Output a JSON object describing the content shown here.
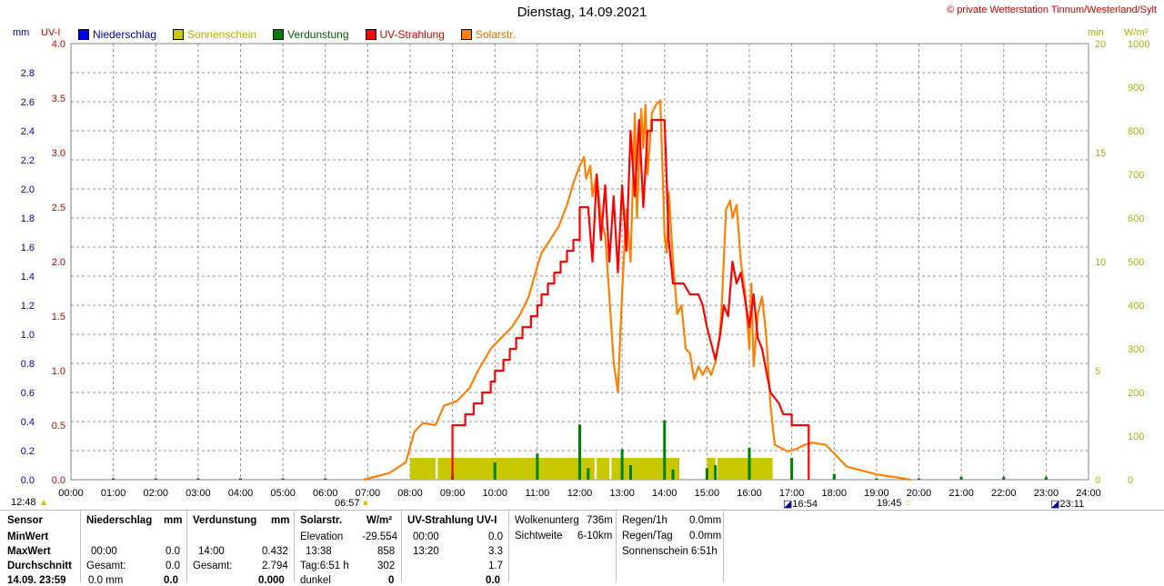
{
  "header": {
    "title": "Dienstag, 14.09.2021",
    "copyright": "© private Wetterstation Tinnum/Westerland/Sylt"
  },
  "units": {
    "mm": "mm",
    "uvi": "UV-I",
    "min": "min",
    "wm2": "W/m²"
  },
  "legend": [
    {
      "label": "Niederschlag",
      "color": "#0000ff",
      "text_color": "#0000aa"
    },
    {
      "label": "Sonnenschein",
      "color": "#c8c800",
      "text_color": "#b0b000"
    },
    {
      "label": "Verdunstung",
      "color": "#008000",
      "text_color": "#006000"
    },
    {
      "label": "UV-Strahlung",
      "color": "#ff0000",
      "text_color": "#cc0000"
    },
    {
      "label": "Solarstr.",
      "color": "#ff8000",
      "text_color": "#e07000"
    }
  ],
  "chart_data": {
    "type": "line",
    "x_unit": "hours",
    "xlim": [
      0,
      24
    ],
    "x_ticks": [
      "00:00",
      "01:00",
      "02:00",
      "03:00",
      "04:00",
      "05:00",
      "06:00",
      "07:00",
      "08:00",
      "09:00",
      "10:00",
      "11:00",
      "12:00",
      "13:00",
      "14:00",
      "15:00",
      "16:00",
      "17:00",
      "18:00",
      "19:00",
      "20:00",
      "21:00",
      "22:00",
      "23:00",
      "24:00"
    ],
    "axes": {
      "mm": {
        "ticks": [
          "0.0",
          "0.2",
          "0.4",
          "0.6",
          "0.8",
          "1.0",
          "1.2",
          "1.4",
          "1.6",
          "1.8",
          "2.0",
          "2.2",
          "2.4",
          "2.6",
          "2.8"
        ],
        "ylim": [
          0,
          3.0
        ]
      },
      "uvi": {
        "ticks": [
          "0.0",
          "0.5",
          "1.0",
          "1.5",
          "2.0",
          "2.5",
          "3.0",
          "3.5",
          "4.0"
        ],
        "ylim": [
          0,
          4.0
        ]
      },
      "min": {
        "ticks": [
          "0",
          "5",
          "10",
          "15",
          "20"
        ],
        "ylim": [
          0,
          20
        ]
      },
      "wm2": {
        "ticks": [
          "0",
          "100",
          "200",
          "300",
          "400",
          "500",
          "600",
          "700",
          "800",
          "900",
          "1000"
        ],
        "ylim": [
          0,
          1000
        ]
      }
    },
    "grid": true,
    "series": [
      {
        "name": "Solarstr.",
        "axis": "wm2",
        "color": "#ff8000",
        "points": [
          [
            6.9,
            0
          ],
          [
            7.5,
            15
          ],
          [
            7.9,
            40
          ],
          [
            8.1,
            110
          ],
          [
            8.3,
            130
          ],
          [
            8.6,
            125
          ],
          [
            8.8,
            170
          ],
          [
            9.1,
            180
          ],
          [
            9.4,
            210
          ],
          [
            9.6,
            250
          ],
          [
            9.9,
            300
          ],
          [
            10.1,
            320
          ],
          [
            10.4,
            350
          ],
          [
            10.6,
            380
          ],
          [
            10.8,
            420
          ],
          [
            11.0,
            490
          ],
          [
            11.1,
            520
          ],
          [
            11.3,
            550
          ],
          [
            11.5,
            580
          ],
          [
            11.7,
            630
          ],
          [
            11.85,
            680
          ],
          [
            12.0,
            720
          ],
          [
            12.1,
            740
          ],
          [
            12.15,
            690
          ],
          [
            12.25,
            720
          ],
          [
            12.3,
            650
          ],
          [
            12.4,
            700
          ],
          [
            12.5,
            600
          ],
          [
            12.6,
            560
          ],
          [
            12.7,
            420
          ],
          [
            12.8,
            270
          ],
          [
            12.9,
            200
          ],
          [
            13.0,
            430
          ],
          [
            13.1,
            620
          ],
          [
            13.2,
            500
          ],
          [
            13.3,
            840
          ],
          [
            13.35,
            600
          ],
          [
            13.45,
            850
          ],
          [
            13.5,
            760
          ],
          [
            13.55,
            860
          ],
          [
            13.6,
            700
          ],
          [
            13.7,
            840
          ],
          [
            13.8,
            860
          ],
          [
            13.9,
            870
          ],
          [
            14.0,
            560
          ],
          [
            14.05,
            520
          ],
          [
            14.1,
            660
          ],
          [
            14.2,
            500
          ],
          [
            14.3,
            380
          ],
          [
            14.4,
            400
          ],
          [
            14.5,
            300
          ],
          [
            14.6,
            290
          ],
          [
            14.7,
            230
          ],
          [
            14.8,
            260
          ],
          [
            14.9,
            240
          ],
          [
            15.0,
            260
          ],
          [
            15.1,
            240
          ],
          [
            15.2,
            270
          ],
          [
            15.3,
            330
          ],
          [
            15.35,
            400
          ],
          [
            15.45,
            620
          ],
          [
            15.55,
            640
          ],
          [
            15.6,
            600
          ],
          [
            15.7,
            630
          ],
          [
            15.8,
            500
          ],
          [
            15.9,
            430
          ],
          [
            16.0,
            300
          ],
          [
            16.05,
            450
          ],
          [
            16.1,
            260
          ],
          [
            16.2,
            380
          ],
          [
            16.3,
            420
          ],
          [
            16.4,
            330
          ],
          [
            16.5,
            170
          ],
          [
            16.6,
            80
          ],
          [
            16.8,
            70
          ],
          [
            16.9,
            65
          ],
          [
            17.1,
            70
          ],
          [
            17.3,
            80
          ],
          [
            17.5,
            85
          ],
          [
            17.8,
            80
          ],
          [
            18.0,
            60
          ],
          [
            18.3,
            30
          ],
          [
            18.7,
            20
          ],
          [
            19.0,
            12
          ],
          [
            19.5,
            5
          ],
          [
            19.8,
            0
          ]
        ]
      },
      {
        "name": "UV-Strahlung",
        "axis": "uvi",
        "color": "#ff0000",
        "points": [
          [
            9.0,
            0
          ],
          [
            9.0,
            0.5
          ],
          [
            9.3,
            0.5
          ],
          [
            9.3,
            0.6
          ],
          [
            9.5,
            0.6
          ],
          [
            9.5,
            0.7
          ],
          [
            9.7,
            0.7
          ],
          [
            9.7,
            0.8
          ],
          [
            9.9,
            0.8
          ],
          [
            9.9,
            0.9
          ],
          [
            10.0,
            0.9
          ],
          [
            10.0,
            1.0
          ],
          [
            10.2,
            1.0
          ],
          [
            10.2,
            1.1
          ],
          [
            10.35,
            1.1
          ],
          [
            10.35,
            1.2
          ],
          [
            10.5,
            1.2
          ],
          [
            10.5,
            1.3
          ],
          [
            10.65,
            1.3
          ],
          [
            10.65,
            1.4
          ],
          [
            10.85,
            1.4
          ],
          [
            10.85,
            1.5
          ],
          [
            11.0,
            1.5
          ],
          [
            11.0,
            1.6
          ],
          [
            11.1,
            1.6
          ],
          [
            11.1,
            1.7
          ],
          [
            11.25,
            1.7
          ],
          [
            11.25,
            1.8
          ],
          [
            11.4,
            1.8
          ],
          [
            11.4,
            1.9
          ],
          [
            11.55,
            1.9
          ],
          [
            11.55,
            2.0
          ],
          [
            11.7,
            2.0
          ],
          [
            11.7,
            2.1
          ],
          [
            11.85,
            2.1
          ],
          [
            11.85,
            2.2
          ],
          [
            12.0,
            2.2
          ],
          [
            12.0,
            2.5
          ],
          [
            12.2,
            2.5
          ],
          [
            12.3,
            2.0
          ],
          [
            12.4,
            2.8
          ],
          [
            12.5,
            2.2
          ],
          [
            12.6,
            2.7
          ],
          [
            12.7,
            2.0
          ],
          [
            12.8,
            2.6
          ],
          [
            12.9,
            1.9
          ],
          [
            13.0,
            2.7
          ],
          [
            13.1,
            2.1
          ],
          [
            13.2,
            3.2
          ],
          [
            13.3,
            2.6
          ],
          [
            13.4,
            3.3
          ],
          [
            13.5,
            2.5
          ],
          [
            13.6,
            3.2
          ],
          [
            13.7,
            3.2
          ],
          [
            13.7,
            3.3
          ],
          [
            14.0,
            3.3
          ],
          [
            14.1,
            2.2
          ],
          [
            14.2,
            1.8
          ],
          [
            14.3,
            1.8
          ],
          [
            14.3,
            1.8
          ],
          [
            14.45,
            1.8
          ],
          [
            14.6,
            1.7
          ],
          [
            14.8,
            1.7
          ],
          [
            14.9,
            1.6
          ],
          [
            15.0,
            1.4
          ],
          [
            15.2,
            1.1
          ],
          [
            15.3,
            1.3
          ],
          [
            15.4,
            1.6
          ],
          [
            15.5,
            1.5
          ],
          [
            15.6,
            2.0
          ],
          [
            15.7,
            1.8
          ],
          [
            15.8,
            1.9
          ],
          [
            16.0,
            1.4
          ],
          [
            16.1,
            1.7
          ],
          [
            16.2,
            1.3
          ],
          [
            16.3,
            1.2
          ],
          [
            16.4,
            1.0
          ],
          [
            16.5,
            0.8
          ],
          [
            16.7,
            0.7
          ],
          [
            16.8,
            0.6
          ],
          [
            17.0,
            0.6
          ],
          [
            17.0,
            0.5
          ],
          [
            17.4,
            0.5
          ],
          [
            17.4,
            0.0
          ]
        ]
      }
    ],
    "bars": [
      {
        "name": "Sonnenschein",
        "axis": "min",
        "color": "#c8c800",
        "intervals": [
          [
            8.0,
            8.6
          ],
          [
            8.65,
            12.35
          ],
          [
            12.4,
            12.7
          ],
          [
            12.75,
            14.35
          ],
          [
            15.0,
            15.2
          ],
          [
            15.25,
            16.55
          ]
        ],
        "value": 1.0
      },
      {
        "name": "Verdunstung",
        "axis": "mm",
        "color": "#008000",
        "ticks": [
          [
            1.0,
            0.01
          ],
          [
            2.0,
            0.01
          ],
          [
            3.0,
            0.01
          ],
          [
            4.0,
            0.01
          ],
          [
            5.0,
            0.01
          ],
          [
            6.0,
            0.01
          ],
          [
            7.0,
            0.01
          ],
          [
            9.0,
            0.03
          ],
          [
            10.0,
            0.12
          ],
          [
            11.0,
            0.18
          ],
          [
            12.0,
            0.38
          ],
          [
            12.2,
            0.08
          ],
          [
            13.0,
            0.21
          ],
          [
            13.2,
            0.1
          ],
          [
            14.0,
            0.41
          ],
          [
            14.2,
            0.07
          ],
          [
            15.0,
            0.08
          ],
          [
            15.2,
            0.1
          ],
          [
            16.0,
            0.22
          ],
          [
            17.0,
            0.15
          ],
          [
            18.0,
            0.04
          ],
          [
            19.0,
            0.01
          ],
          [
            20.0,
            0.01
          ],
          [
            21.0,
            0.02
          ],
          [
            22.0,
            0.02
          ],
          [
            23.0,
            0.02
          ]
        ]
      }
    ]
  },
  "markers": {
    "current": "12:48",
    "sunrise": "06:57",
    "sunset": "19:45",
    "moonrise": "16:54",
    "moonset": "23:11"
  },
  "table": {
    "headers": {
      "sensor": "Sensor",
      "niederschlag": "Niederschlag",
      "niederschlag_unit": "mm",
      "verdunstung": "Verdunstung",
      "verdunstung_unit": "mm",
      "solar": "Solarstr.",
      "solar_unit": "W/m²",
      "uv": "UV-Strahlung UV-I"
    },
    "rows": {
      "minwert": "MinWert",
      "maxwert": "MaxWert",
      "durchschnitt": "Durchschnitt",
      "datetime": "14.09. 23:59"
    },
    "niederschlag": {
      "max_time": "00:00",
      "max_val": "0.0",
      "gesamt_label": "Gesamt:",
      "gesamt_val": "0.0",
      "last_val": "0.0 mm",
      "last_bold": "0.0"
    },
    "verdunstung": {
      "max_time": "14:00",
      "max_val": "0.432",
      "gesamt_label": "Gesamt:",
      "gesamt_val": "2.794",
      "last_bold": "0.000"
    },
    "solar": {
      "elev_label": "Elevation",
      "elev_val": "-29.554",
      "max_time": "13:38",
      "max_val": "858",
      "tag_label": "Tag:6:51 h",
      "tag_val": "302",
      "dunkel_label": "dunkel",
      "dunkel_val": "0"
    },
    "uv": {
      "min_time": "00:00",
      "min_val": "0.0",
      "max_time": "13:20",
      "max_val": "3.3",
      "avg_val": "1.7",
      "last_val": "0.0"
    },
    "extra1": {
      "wolken_label": "Wolkenunterg",
      "wolken_val": "736m",
      "sicht_label": "Sichtweite",
      "sicht_val": "6-10km"
    },
    "extra2": {
      "r1h_label": "Regen/1h",
      "r1h_val": "0.0mm",
      "rtag_label": "Regen/Tag",
      "rtag_val": "0.0mm",
      "sonne_label": "Sonnenschein",
      "sonne_val": "6:51h"
    }
  }
}
